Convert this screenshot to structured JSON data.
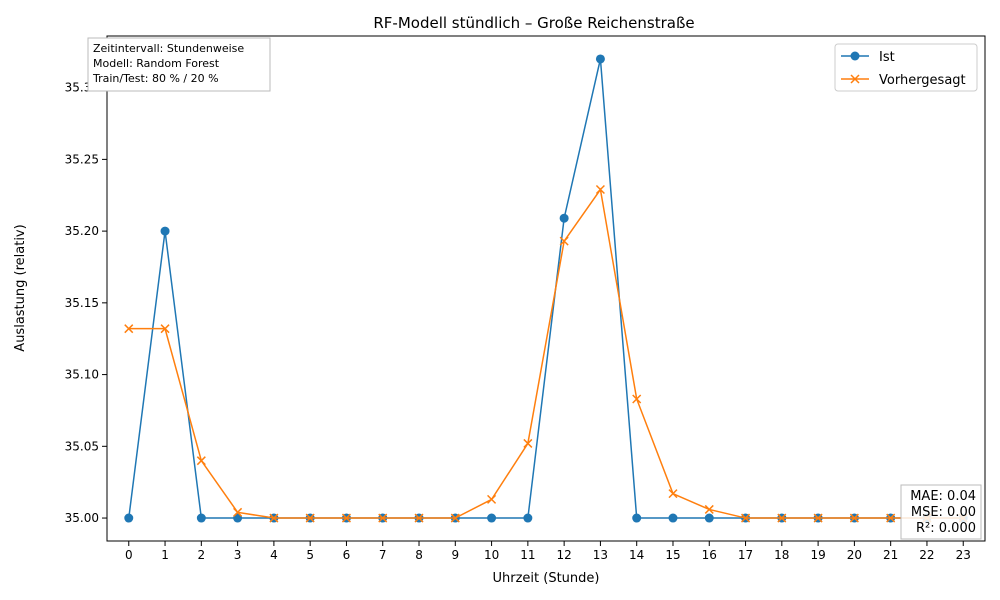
{
  "chart_data": {
    "type": "line",
    "title": "RF-Modell stündlich – Große Reichenstraße",
    "xlabel": "Uhrzeit (Stunde)",
    "ylabel": "Auslastung (relativ)",
    "x": [
      0,
      1,
      2,
      3,
      4,
      5,
      6,
      7,
      8,
      9,
      10,
      11,
      12,
      13,
      14,
      15,
      16,
      17,
      18,
      19,
      20,
      21,
      22,
      23
    ],
    "xlim": [
      -0.6,
      23.6
    ],
    "ylim": [
      34.984,
      35.336
    ],
    "yticks": [
      35.0,
      35.05,
      35.1,
      35.15,
      35.2,
      35.25,
      35.3
    ],
    "ytick_labels": [
      "35.00",
      "35.05",
      "35.10",
      "35.15",
      "35.20",
      "35.25",
      "35.30"
    ],
    "xtick_labels": [
      "0",
      "1",
      "2",
      "3",
      "4",
      "5",
      "6",
      "7",
      "8",
      "9",
      "10",
      "11",
      "12",
      "13",
      "14",
      "15",
      "16",
      "17",
      "18",
      "19",
      "20",
      "21",
      "22",
      "23"
    ],
    "grid": false,
    "legend_position": "top-right",
    "series": [
      {
        "name": "Ist",
        "color": "#1f77b4",
        "marker": "circle",
        "values": [
          35.0,
          35.2,
          35.0,
          35.0,
          35.0,
          35.0,
          35.0,
          35.0,
          35.0,
          35.0,
          35.0,
          35.0,
          35.209,
          35.32,
          35.0,
          35.0,
          35.0,
          35.0,
          35.0,
          35.0,
          35.0,
          35.0,
          35.0,
          35.0
        ]
      },
      {
        "name": "Vorhergesagt",
        "color": "#ff7f0e",
        "marker": "x",
        "values": [
          35.132,
          35.132,
          35.04,
          35.004,
          35.0,
          35.0,
          35.0,
          35.0,
          35.0,
          35.0,
          35.013,
          35.052,
          35.193,
          35.229,
          35.083,
          35.017,
          35.006,
          35.0,
          35.0,
          35.0,
          35.0,
          35.0,
          35.0,
          35.0
        ]
      }
    ],
    "annotations": {
      "info_box": [
        "Zeitintervall: Stundenweise",
        "Modell: Random Forest",
        "Train/Test: 80 % / 20 %"
      ],
      "metrics_box": [
        "MAE: 0.04",
        "MSE: 0.00",
        "R²: 0.000"
      ]
    }
  }
}
